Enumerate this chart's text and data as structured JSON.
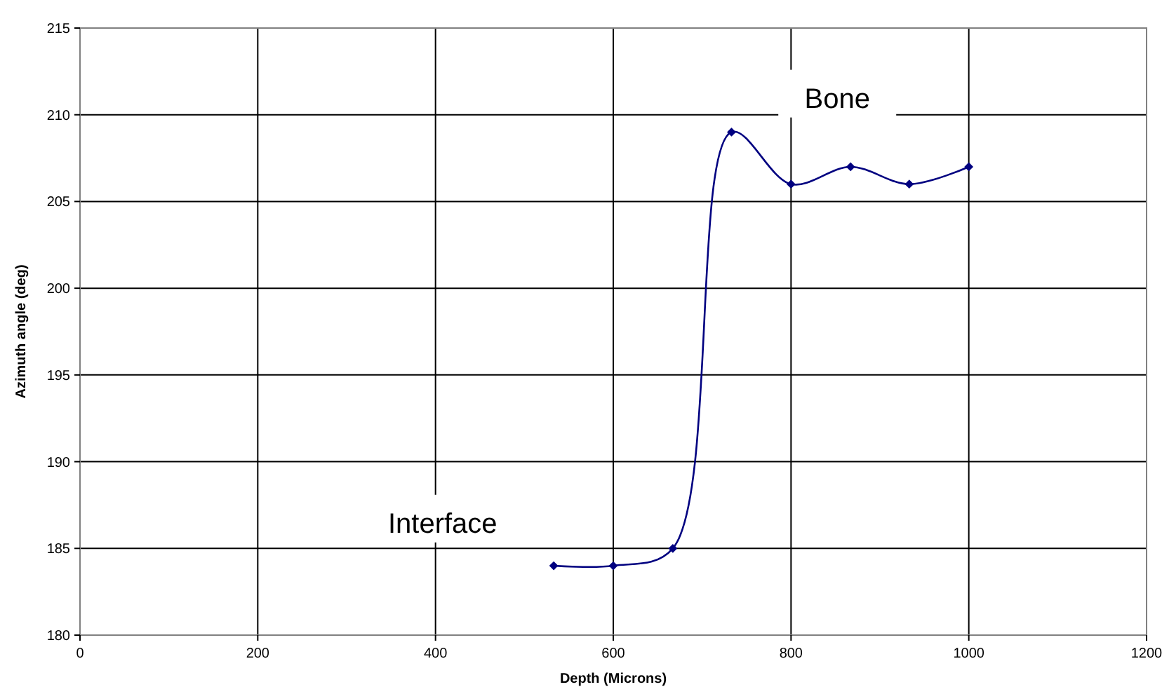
{
  "chart_data": {
    "type": "line",
    "xlabel": "Depth (Microns)",
    "ylabel": "Azimuth angle (deg)",
    "x": [
      533,
      600,
      667,
      733,
      800,
      867,
      933,
      1000
    ],
    "series": [
      {
        "color": "#000080",
        "values": [
          184,
          184,
          185,
          209,
          206,
          207,
          206,
          207
        ]
      }
    ],
    "xlim": [
      0,
      1200
    ],
    "xticks": [
      0,
      200,
      400,
      600,
      800,
      1000,
      1200
    ],
    "ylim": [
      180,
      215
    ],
    "yticks": [
      180,
      185,
      190,
      195,
      200,
      205,
      210,
      215
    ],
    "grid": true,
    "marker": "diamond",
    "line_style": "solid",
    "annotations": [
      "Interface",
      "Bone"
    ]
  }
}
